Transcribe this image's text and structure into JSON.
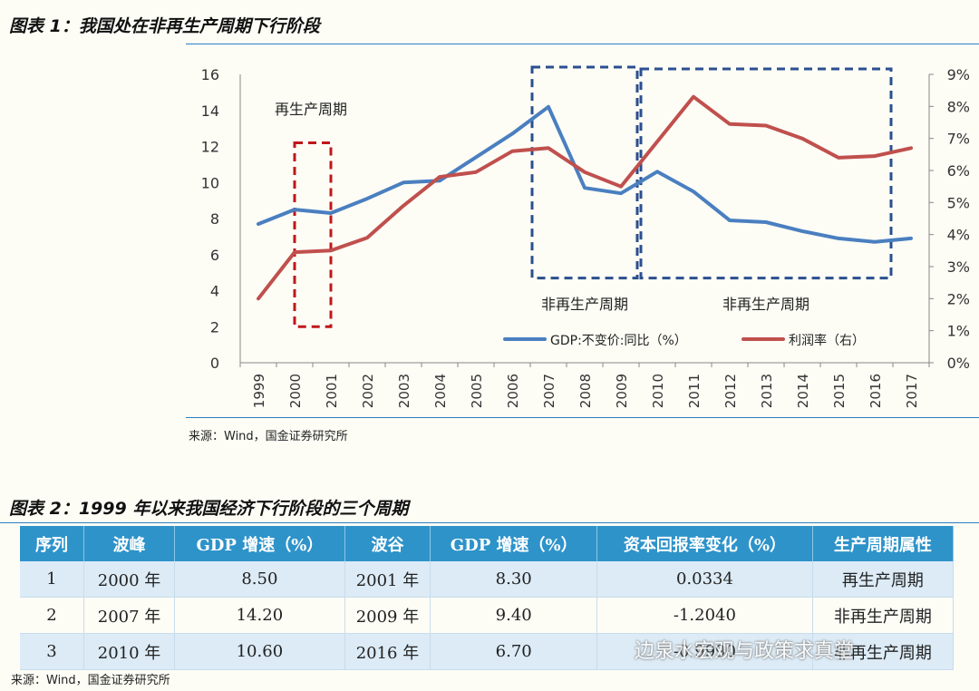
{
  "figure1": {
    "title": "图表 1：我国处在非再生产周期下行阶段",
    "source": "来源：Wind，国金证券研究所"
  },
  "chart_data": {
    "type": "line",
    "x": [
      "1999",
      "2000",
      "2001",
      "2002",
      "2003",
      "2004",
      "2005",
      "2006",
      "2007",
      "2008",
      "2009",
      "2010",
      "2011",
      "2012",
      "2013",
      "2014",
      "2015",
      "2016",
      "2017"
    ],
    "series": [
      {
        "name": "GDP:不变价:同比（%）",
        "axis": "left",
        "color": "#4a7fc0",
        "values": [
          7.7,
          8.5,
          8.3,
          9.1,
          10.0,
          10.1,
          11.4,
          12.7,
          14.2,
          9.7,
          9.4,
          10.6,
          9.5,
          7.9,
          7.8,
          7.3,
          6.9,
          6.7,
          6.9
        ]
      },
      {
        "name": "利润率（右）",
        "axis": "right",
        "color": "#c0504d",
        "values": [
          2.0,
          3.45,
          3.5,
          3.9,
          4.9,
          5.8,
          5.95,
          6.6,
          6.7,
          5.95,
          5.5,
          6.9,
          8.3,
          7.45,
          7.4,
          7.0,
          6.4,
          6.45,
          6.7
        ]
      }
    ],
    "y_left": {
      "ylim": [
        0,
        16
      ],
      "ticks": [
        "0",
        "2",
        "4",
        "6",
        "8",
        "10",
        "12",
        "14",
        "16"
      ]
    },
    "y_right": {
      "ylim": [
        0,
        9
      ],
      "ticks": [
        "0%",
        "1%",
        "2%",
        "3%",
        "4%",
        "5%",
        "6%",
        "7%",
        "8%",
        "9%"
      ]
    },
    "annotations": [
      {
        "text": "再生产周期",
        "box_years": [
          "2000",
          "2001"
        ],
        "box_ylim": [
          2,
          12.2
        ],
        "color": "#c0161b"
      },
      {
        "text": "非再生产周期",
        "box_years": [
          "2007",
          "2009"
        ],
        "box_ylim": [
          4.7,
          16.4
        ],
        "color": "#2b4f8f"
      },
      {
        "text": "非再生产周期",
        "box_years": [
          "2010",
          "2016"
        ],
        "box_ylim": [
          4.7,
          16.3
        ],
        "color": "#2b4f8f"
      }
    ],
    "legend": "bottom-right"
  },
  "figure2": {
    "title": "图表 2：1999 年以来我国经济下行阶段的三个周期",
    "headers": [
      "序列",
      "波峰",
      "GDP 增速（%）",
      "波谷",
      "GDP 增速（%）",
      "资本回报率变化（%）",
      "生产周期属性"
    ],
    "rows": [
      [
        "1",
        "2000 年",
        "8.50",
        "2001 年",
        "8.30",
        "0.0334",
        "再生产周期"
      ],
      [
        "2",
        "2007 年",
        "14.20",
        "2009 年",
        "9.40",
        "-1.2040",
        "非再生产周期"
      ],
      [
        "3",
        "2010 年",
        "10.60",
        "2016 年",
        "6.70",
        "-0.9990",
        "非再生产周期"
      ]
    ],
    "source": "来源：Wind，国金证券研究所"
  },
  "watermark": "边泉水宏观与政策求真堂"
}
